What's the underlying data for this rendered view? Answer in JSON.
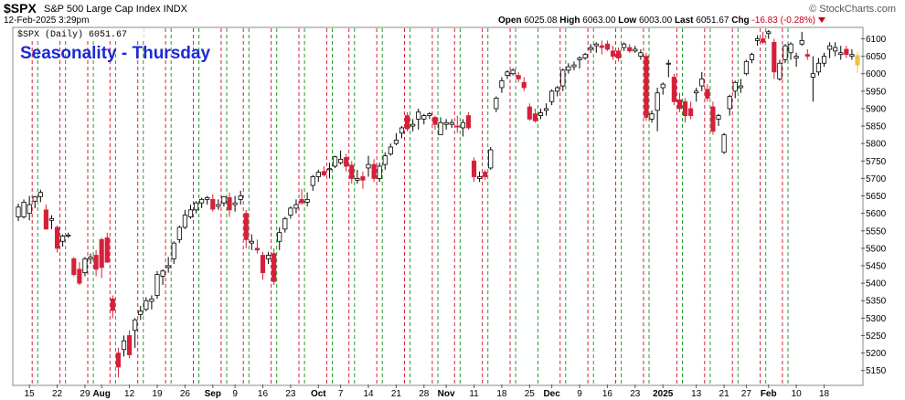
{
  "header": {
    "symbol": "$SPX",
    "description": "S&P 500 Large Cap Index  INDX",
    "date": "12-Feb-2025 3:29pm",
    "logo": "© StockCharts.com",
    "open_label": "Open",
    "open": "6025.08",
    "high_label": "High",
    "high": "6063.00",
    "low_label": "Low",
    "low": "6003.00",
    "last_label": "Last",
    "last": "6051.67",
    "chg_label": "Chg",
    "chg": "-16.83 (-0.28%)"
  },
  "legend": "$SPX (Daily) 6051.67",
  "annotation": "Seasonality - Thursday",
  "colors": {
    "up": "#ffffff",
    "down": "#d6203a",
    "outline": "#000000",
    "red_line": "#d6203a",
    "green_line": "#2a9a2a",
    "current": "#f0c040",
    "annotation": "#1c2ad6"
  },
  "chart_data": {
    "type": "candlestick",
    "title": "$SPX S&P 500 Large Cap Index",
    "ylim": [
      5110,
      6130
    ],
    "y_ticks": [
      5150,
      5200,
      5250,
      5300,
      5350,
      5400,
      5450,
      5500,
      5550,
      5600,
      5650,
      5700,
      5750,
      5800,
      5850,
      5900,
      5950,
      6000,
      6050,
      6100
    ],
    "x_tick_labels": [
      {
        "i": 2,
        "label": "15"
      },
      {
        "i": 7,
        "label": "22"
      },
      {
        "i": 12,
        "label": "29"
      },
      {
        "i": 15,
        "label": "Aug"
      },
      {
        "i": 20,
        "label": "12"
      },
      {
        "i": 25,
        "label": "19"
      },
      {
        "i": 30,
        "label": "26"
      },
      {
        "i": 35,
        "label": "Sep"
      },
      {
        "i": 39,
        "label": "9"
      },
      {
        "i": 44,
        "label": "16"
      },
      {
        "i": 49,
        "label": "23"
      },
      {
        "i": 54,
        "label": "Oct"
      },
      {
        "i": 58,
        "label": "7"
      },
      {
        "i": 63,
        "label": "14"
      },
      {
        "i": 68,
        "label": "21"
      },
      {
        "i": 73,
        "label": "28"
      },
      {
        "i": 77,
        "label": "Nov"
      },
      {
        "i": 82,
        "label": "11"
      },
      {
        "i": 87,
        "label": "18"
      },
      {
        "i": 92,
        "label": "25"
      },
      {
        "i": 96,
        "label": "Dec"
      },
      {
        "i": 101,
        "label": "9"
      },
      {
        "i": 106,
        "label": "16"
      },
      {
        "i": 111,
        "label": "23"
      },
      {
        "i": 116,
        "label": "2025"
      },
      {
        "i": 122,
        "label": "13"
      },
      {
        "i": 127,
        "label": "21"
      },
      {
        "i": 131,
        "label": "27"
      },
      {
        "i": 135,
        "label": "Feb"
      },
      {
        "i": 140,
        "label": "10"
      },
      {
        "i": 145,
        "label": "18"
      }
    ],
    "red_lines": [
      3,
      8,
      13,
      17,
      22,
      27,
      32,
      37,
      41,
      46,
      51,
      56,
      60,
      65,
      70,
      75,
      79,
      84,
      89,
      98,
      103,
      108,
      113,
      119,
      124,
      129,
      134,
      138
    ],
    "green_lines": [
      4,
      9,
      14,
      18,
      23,
      28,
      33,
      38,
      42,
      47,
      52,
      57,
      61,
      66,
      71,
      76,
      80,
      85,
      90,
      94,
      99,
      104,
      109,
      114,
      120,
      125,
      130,
      135,
      139
    ],
    "candles": [
      [
        0,
        5618,
        5628,
        5578,
        5590
      ],
      [
        1,
        5590,
        5640,
        5585,
        5632
      ],
      [
        2,
        5625,
        5650,
        5580,
        5600
      ],
      [
        3,
        5635,
        5650,
        5615,
        5647
      ],
      [
        4,
        5648,
        5668,
        5632,
        5660
      ],
      [
        5,
        5610,
        5625,
        5560,
        5555
      ],
      [
        6,
        5585,
        5595,
        5555,
        5580
      ],
      [
        7,
        5560,
        5565,
        5488,
        5500
      ],
      [
        8,
        5520,
        5540,
        5505,
        5535
      ],
      [
        9,
        5535,
        5545,
        5530,
        5538
      ],
      [
        10,
        5470,
        5475,
        5420,
        5425
      ],
      [
        11,
        5440,
        5460,
        5395,
        5400
      ],
      [
        12,
        5430,
        5475,
        5420,
        5470
      ],
      [
        13,
        5470,
        5485,
        5455,
        5475
      ],
      [
        14,
        5480,
        5495,
        5420,
        5440
      ],
      [
        15,
        5525,
        5530,
        5415,
        5445
      ],
      [
        16,
        5530,
        5545,
        5465,
        5460
      ],
      [
        17,
        5355,
        5365,
        5300,
        5322
      ],
      [
        18,
        5200,
        5215,
        5130,
        5160
      ],
      [
        19,
        5210,
        5250,
        5190,
        5235
      ],
      [
        20,
        5250,
        5265,
        5185,
        5195
      ],
      [
        21,
        5265,
        5300,
        5215,
        5295
      ],
      [
        22,
        5310,
        5335,
        5295,
        5320
      ],
      [
        23,
        5325,
        5360,
        5320,
        5350
      ],
      [
        24,
        5355,
        5365,
        5325,
        5348
      ],
      [
        25,
        5365,
        5435,
        5355,
        5425
      ],
      [
        26,
        5420,
        5440,
        5395,
        5435
      ],
      [
        27,
        5445,
        5475,
        5430,
        5450
      ],
      [
        28,
        5470,
        5520,
        5455,
        5515
      ],
      [
        29,
        5525,
        5565,
        5515,
        5560
      ],
      [
        30,
        5560,
        5610,
        5555,
        5595
      ],
      [
        31,
        5590,
        5625,
        5585,
        5610
      ],
      [
        32,
        5610,
        5635,
        5600,
        5630
      ],
      [
        33,
        5630,
        5645,
        5615,
        5640
      ],
      [
        34,
        5640,
        5650,
        5625,
        5645
      ],
      [
        35,
        5640,
        5655,
        5605,
        5612
      ],
      [
        36,
        5625,
        5640,
        5610,
        5620
      ],
      [
        37,
        5630,
        5650,
        5620,
        5648
      ],
      [
        38,
        5645,
        5660,
        5590,
        5610
      ],
      [
        39,
        5625,
        5650,
        5605,
        5630
      ],
      [
        40,
        5650,
        5665,
        5625,
        5640
      ],
      [
        41,
        5600,
        5610,
        5500,
        5525
      ],
      [
        42,
        5515,
        5540,
        5495,
        5520
      ],
      [
        43,
        5500,
        5525,
        5485,
        5495
      ],
      [
        44,
        5480,
        5490,
        5410,
        5430
      ],
      [
        45,
        5470,
        5490,
        5455,
        5480
      ],
      [
        46,
        5485,
        5500,
        5395,
        5405
      ],
      [
        47,
        5520,
        5560,
        5495,
        5545
      ],
      [
        48,
        5555,
        5590,
        5545,
        5585
      ],
      [
        49,
        5595,
        5620,
        5585,
        5615
      ],
      [
        50,
        5615,
        5640,
        5600,
        5625
      ],
      [
        51,
        5640,
        5670,
        5625,
        5630
      ],
      [
        52,
        5640,
        5660,
        5620,
        5632
      ],
      [
        53,
        5680,
        5710,
        5665,
        5705
      ],
      [
        54,
        5705,
        5725,
        5690,
        5718
      ],
      [
        55,
        5720,
        5735,
        5705,
        5710
      ],
      [
        56,
        5725,
        5745,
        5700,
        5728
      ],
      [
        57,
        5735,
        5765,
        5730,
        5762
      ],
      [
        58,
        5755,
        5780,
        5740,
        5745
      ],
      [
        59,
        5760,
        5770,
        5720,
        5735
      ],
      [
        60,
        5738,
        5750,
        5685,
        5700
      ],
      [
        61,
        5700,
        5725,
        5685,
        5695
      ],
      [
        62,
        5705,
        5720,
        5670,
        5695
      ],
      [
        63,
        5740,
        5765,
        5705,
        5730
      ],
      [
        64,
        5740,
        5755,
        5690,
        5700
      ],
      [
        65,
        5700,
        5745,
        5690,
        5735
      ],
      [
        66,
        5740,
        5775,
        5725,
        5765
      ],
      [
        67,
        5770,
        5800,
        5765,
        5790
      ],
      [
        68,
        5800,
        5830,
        5795,
        5810
      ],
      [
        69,
        5830,
        5850,
        5815,
        5845
      ],
      [
        70,
        5880,
        5890,
        5835,
        5842
      ],
      [
        71,
        5855,
        5870,
        5835,
        5850
      ],
      [
        72,
        5890,
        5900,
        5840,
        5870
      ],
      [
        73,
        5870,
        5885,
        5855,
        5880
      ],
      [
        74,
        5880,
        5890,
        5870,
        5885
      ],
      [
        75,
        5875,
        5880,
        5840,
        5855
      ],
      [
        76,
        5860,
        5875,
        5830,
        5825
      ],
      [
        77,
        5855,
        5870,
        5840,
        5860
      ],
      [
        78,
        5860,
        5870,
        5845,
        5855
      ],
      [
        79,
        5850,
        5880,
        5830,
        5848
      ],
      [
        80,
        5860,
        5870,
        5820,
        5845
      ],
      [
        81,
        5880,
        5890,
        5840,
        5845
      ],
      [
        82,
        5750,
        5760,
        5690,
        5705
      ],
      [
        83,
        5705,
        5720,
        5690,
        5700
      ],
      [
        84,
        5705,
        5725,
        5695,
        5718
      ],
      [
        85,
        5730,
        5790,
        5725,
        5782
      ],
      [
        86,
        5900,
        5935,
        5890,
        5930
      ],
      [
        87,
        5960,
        5990,
        5945,
        5980
      ],
      [
        88,
        5995,
        6010,
        5985,
        6005
      ],
      [
        89,
        6000,
        6015,
        5995,
        6010
      ],
      [
        90,
        5995,
        6005,
        5975,
        5985
      ],
      [
        91,
        5975,
        5990,
        5950,
        5960
      ],
      [
        92,
        5905,
        5915,
        5865,
        5870
      ],
      [
        93,
        5885,
        5900,
        5860,
        5865
      ],
      [
        94,
        5880,
        5900,
        5870,
        5888
      ],
      [
        95,
        5900,
        5915,
        5880,
        5895
      ],
      [
        96,
        5920,
        5955,
        5910,
        5950
      ],
      [
        97,
        5950,
        5965,
        5935,
        5960
      ],
      [
        98,
        5965,
        6015,
        5950,
        6010
      ],
      [
        99,
        6010,
        6030,
        6000,
        6020
      ],
      [
        100,
        6020,
        6035,
        6010,
        6025
      ],
      [
        101,
        6040,
        6050,
        6015,
        6045
      ],
      [
        102,
        6045,
        6060,
        6040,
        6055
      ],
      [
        103,
        6070,
        6085,
        6060,
        6075
      ],
      [
        104,
        6080,
        6090,
        6060,
        6085
      ],
      [
        105,
        6075,
        6095,
        6055,
        6080
      ],
      [
        106,
        6085,
        6095,
        6065,
        6070
      ],
      [
        107,
        6065,
        6080,
        6040,
        6050
      ],
      [
        108,
        6065,
        6075,
        6035,
        6045
      ],
      [
        109,
        6085,
        6090,
        6065,
        6075
      ],
      [
        110,
        6075,
        6085,
        6060,
        6065
      ],
      [
        111,
        6065,
        6080,
        6060,
        6070
      ],
      [
        112,
        6060,
        6070,
        6040,
        6050
      ],
      [
        113,
        6050,
        6060,
        5865,
        5875
      ],
      [
        114,
        5870,
        5895,
        5860,
        5885
      ],
      [
        115,
        5895,
        5960,
        5835,
        5945
      ],
      [
        116,
        5960,
        5975,
        5940,
        5970
      ],
      [
        117,
        6030,
        6040,
        5990,
        6030
      ],
      [
        118,
        5990,
        6000,
        5910,
        5920
      ],
      [
        119,
        5925,
        5945,
        5890,
        5900
      ],
      [
        120,
        5920,
        5930,
        5860,
        5880
      ],
      [
        121,
        5900,
        5920,
        5870,
        5880
      ],
      [
        122,
        5950,
        5960,
        5920,
        5945
      ],
      [
        123,
        5965,
        6005,
        5950,
        5985
      ],
      [
        124,
        5955,
        5970,
        5920,
        5930
      ],
      [
        125,
        5905,
        5920,
        5825,
        5835
      ],
      [
        126,
        5870,
        5885,
        5850,
        5880
      ],
      [
        127,
        5775,
        5830,
        5770,
        5825
      ],
      [
        128,
        5900,
        5940,
        5880,
        5935
      ],
      [
        129,
        5950,
        5980,
        5930,
        5975
      ],
      [
        130,
        5960,
        5985,
        5945,
        5965
      ],
      [
        131,
        6000,
        6040,
        5995,
        6035
      ],
      [
        132,
        6040,
        6060,
        6030,
        6055
      ],
      [
        133,
        6095,
        6110,
        6080,
        6100
      ],
      [
        134,
        6100,
        6120,
        6085,
        6090
      ],
      [
        135,
        6115,
        6125,
        6100,
        6120
      ],
      [
        136,
        6090,
        6100,
        5985,
        6005
      ],
      [
        137,
        5985,
        6040,
        5980,
        6030
      ],
      [
        138,
        6040,
        6085,
        6030,
        6080
      ],
      [
        139,
        6085,
        6090,
        6040,
        6060
      ],
      [
        140,
        6050,
        6060,
        6020,
        6045
      ],
      [
        141,
        6095,
        6120,
        6080,
        6085
      ],
      [
        142,
        6055,
        6070,
        6040,
        6050
      ],
      [
        143,
        5990,
        6050,
        5920,
        6000
      ],
      [
        144,
        6005,
        6045,
        5995,
        6030
      ],
      [
        145,
        6030,
        6060,
        6020,
        6050
      ],
      [
        146,
        6070,
        6090,
        6045,
        6080
      ],
      [
        147,
        6075,
        6090,
        6050,
        6065
      ],
      [
        148,
        6060,
        6080,
        6040,
        6055
      ],
      [
        149,
        6070,
        6080,
        6045,
        6055
      ],
      [
        150,
        6055,
        6070,
        6040,
        6050
      ],
      [
        151,
        6025,
        6063,
        6003,
        6052
      ]
    ],
    "down_candles": [
      5,
      7,
      10,
      11,
      14,
      15,
      16,
      17,
      18,
      20,
      35,
      38,
      41,
      43,
      44,
      46,
      51,
      55,
      59,
      60,
      62,
      64,
      70,
      75,
      79,
      81,
      82,
      84,
      90,
      91,
      92,
      93,
      105,
      106,
      107,
      108,
      110,
      113,
      118,
      119,
      120,
      121,
      124,
      125,
      134,
      136,
      142,
      149
    ],
    "current_index": 151
  }
}
